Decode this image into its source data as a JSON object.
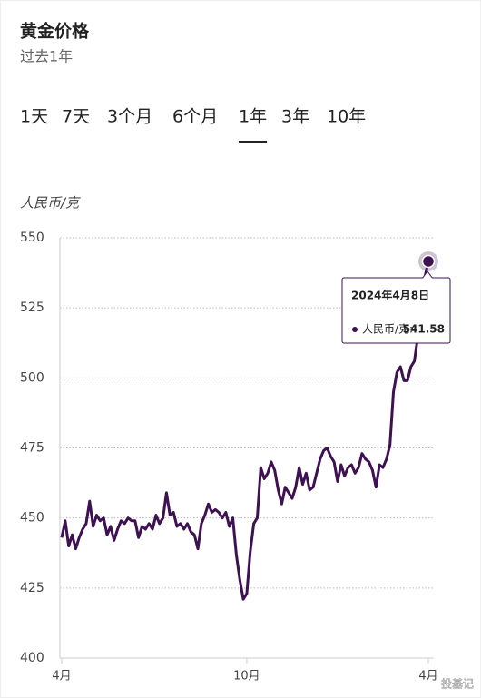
{
  "chart_data": {
    "type": "line",
    "title": "黄金价格",
    "subtitle": "过去1年",
    "tabs": [
      "1天",
      "7天",
      "3个月",
      "6个月",
      "1年",
      "3年",
      "10年"
    ],
    "selected_tab": 4,
    "y_label": "人民币/克",
    "categories": [
      "4月",
      null,
      null,
      null,
      null,
      null,
      null,
      null,
      null,
      null,
      null,
      null,
      null,
      null,
      null,
      null,
      null,
      null,
      null,
      null,
      null,
      null,
      null,
      null,
      null,
      null,
      null,
      null,
      null,
      null,
      null,
      null,
      null,
      null,
      null,
      null,
      null,
      null,
      null,
      null,
      null,
      null,
      null,
      null,
      null,
      null,
      null,
      null,
      null,
      null,
      null,
      null,
      null,
      "10月",
      null,
      null,
      null,
      null,
      null,
      null,
      null,
      null,
      null,
      null,
      null,
      null,
      null,
      null,
      null,
      null,
      null,
      null,
      null,
      null,
      null,
      null,
      null,
      null,
      null,
      null,
      null,
      null,
      null,
      null,
      null,
      null,
      null,
      null,
      null,
      null,
      null,
      null,
      null,
      null,
      null,
      null,
      null,
      null,
      null,
      null,
      null,
      null,
      null,
      null,
      null,
      "4月"
    ],
    "series": [
      {
        "name": "人民币/克",
        "color": "#3d1152",
        "values": [
          443,
          449,
          440,
          444,
          439,
          443,
          446,
          448,
          456,
          447,
          451,
          449,
          450,
          444,
          447,
          442,
          446,
          449,
          448,
          450,
          449,
          449,
          443,
          447,
          446,
          448,
          446,
          451,
          448,
          450,
          459,
          451,
          452,
          447,
          448,
          446,
          448,
          445,
          444,
          439,
          448,
          451,
          455,
          452,
          453,
          452,
          450,
          452,
          447,
          450,
          437,
          428,
          421,
          423,
          438,
          448,
          450,
          468,
          464,
          466,
          470,
          467,
          460,
          455,
          461,
          459,
          457,
          461,
          468,
          462,
          466,
          460,
          461,
          466,
          471,
          474,
          475,
          472,
          470,
          463,
          469,
          465,
          468,
          469,
          466,
          468,
          473,
          471,
          470,
          467,
          461,
          469,
          468,
          471,
          476,
          495,
          502,
          504,
          499,
          499,
          504,
          506,
          515,
          524,
          536,
          541.58
        ]
      }
    ],
    "ylim": [
      400,
      550
    ],
    "yticks": [
      400,
      425,
      450,
      475,
      500,
      525,
      550
    ],
    "grid": true,
    "tooltip": {
      "title": "2024年4月8日",
      "label": "人民币/克:"
    },
    "watermark": "投基记"
  }
}
